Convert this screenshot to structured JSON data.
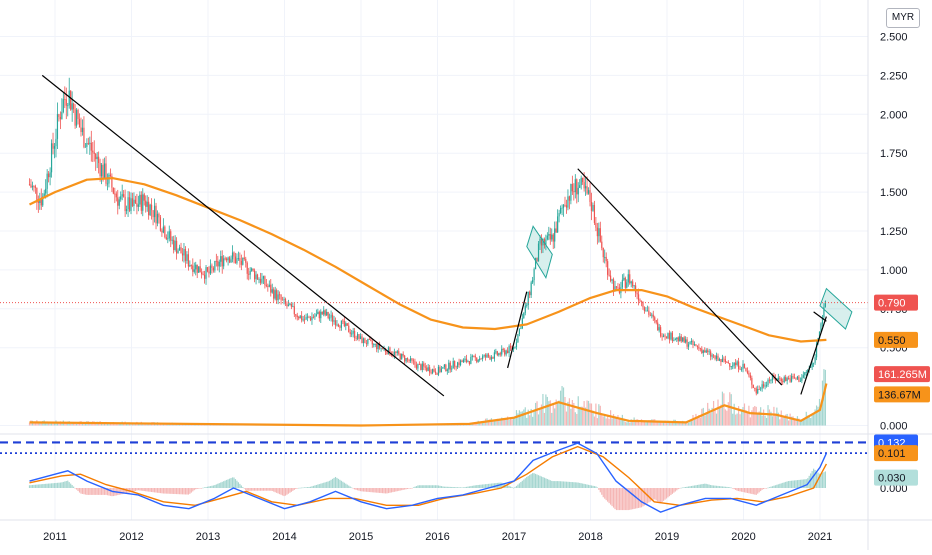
{
  "currency_button": "MYR",
  "colors": {
    "up": "#26a69a",
    "down": "#ef5350",
    "ma": "#f7931a",
    "trendline": "#000000",
    "flag": "#26a69a",
    "macd": "#2962ff",
    "signal": "#f57c00",
    "hline_price": "#ef5350",
    "hline_blue": "#1e3fd6",
    "grid": "#f0f3fa"
  },
  "chart_data": [
    {
      "type": "line",
      "title": "",
      "subtitle": "",
      "xlabel": "",
      "ylabel": "",
      "x_ticks": [
        "2011",
        "2012",
        "2013",
        "2014",
        "2015",
        "2016",
        "2017",
        "2018",
        "2019",
        "2020",
        "2021"
      ],
      "x_range": [
        "2010-09",
        "2021-06"
      ],
      "y_ticks": [
        "2.500",
        "2.250",
        "2.000",
        "1.750",
        "1.500",
        "1.250",
        "1.000",
        "0.750",
        "0.500",
        "0.000"
      ],
      "ylim": [
        -0.05,
        2.6
      ],
      "grid": true,
      "scale": "linear",
      "series": [
        {
          "kind": "price-close",
          "points": [
            [
              "2010-09",
              1.55
            ],
            [
              "2010-11",
              1.45
            ],
            [
              "2011-01",
              1.85
            ],
            [
              "2011-02",
              2.05
            ],
            [
              "2011-03",
              2.15
            ],
            [
              "2011-05",
              1.9
            ],
            [
              "2011-07",
              1.75
            ],
            [
              "2011-09",
              1.6
            ],
            [
              "2011-11",
              1.45
            ],
            [
              "2012-01",
              1.4
            ],
            [
              "2012-03",
              1.45
            ],
            [
              "2012-05",
              1.35
            ],
            [
              "2012-07",
              1.2
            ],
            [
              "2012-10",
              1.05
            ],
            [
              "2013-01",
              0.97
            ],
            [
              "2013-04",
              1.1
            ],
            [
              "2013-06",
              1.05
            ],
            [
              "2013-09",
              0.95
            ],
            [
              "2014-01",
              0.78
            ],
            [
              "2014-04",
              0.68
            ],
            [
              "2014-07",
              0.72
            ],
            [
              "2014-10",
              0.65
            ],
            [
              "2015-01",
              0.55
            ],
            [
              "2015-04",
              0.5
            ],
            [
              "2015-07",
              0.45
            ],
            [
              "2015-10",
              0.38
            ],
            [
              "2016-01",
              0.35
            ],
            [
              "2016-04",
              0.4
            ],
            [
              "2016-07",
              0.43
            ],
            [
              "2016-10",
              0.45
            ],
            [
              "2017-01",
              0.5
            ],
            [
              "2017-03",
              0.78
            ],
            [
              "2017-05",
              1.15
            ],
            [
              "2017-07",
              1.2
            ],
            [
              "2017-09",
              1.45
            ],
            [
              "2017-11",
              1.55
            ],
            [
              "2018-01",
              1.45
            ],
            [
              "2018-03",
              1.1
            ],
            [
              "2018-05",
              0.85
            ],
            [
              "2018-07",
              0.95
            ],
            [
              "2018-09",
              0.8
            ],
            [
              "2018-12",
              0.6
            ],
            [
              "2019-03",
              0.55
            ],
            [
              "2019-06",
              0.5
            ],
            [
              "2019-09",
              0.42
            ],
            [
              "2020-01",
              0.38
            ],
            [
              "2020-03",
              0.22
            ],
            [
              "2020-05",
              0.3
            ],
            [
              "2020-07",
              0.3
            ],
            [
              "2020-10",
              0.3
            ],
            [
              "2020-12",
              0.4
            ],
            [
              "2021-01",
              0.65
            ],
            [
              "2021-02",
              0.79
            ]
          ]
        },
        {
          "kind": "moving-average",
          "points": [
            [
              "2010-09",
              1.42
            ],
            [
              "2011-01",
              1.5
            ],
            [
              "2011-06",
              1.58
            ],
            [
              "2011-10",
              1.59
            ],
            [
              "2012-03",
              1.55
            ],
            [
              "2012-08",
              1.48
            ],
            [
              "2013-01",
              1.4
            ],
            [
              "2013-06",
              1.32
            ],
            [
              "2013-11",
              1.23
            ],
            [
              "2014-04",
              1.13
            ],
            [
              "2014-09",
              1.02
            ],
            [
              "2015-02",
              0.9
            ],
            [
              "2015-07",
              0.78
            ],
            [
              "2015-12",
              0.68
            ],
            [
              "2016-05",
              0.63
            ],
            [
              "2016-10",
              0.62
            ],
            [
              "2017-03",
              0.65
            ],
            [
              "2017-08",
              0.73
            ],
            [
              "2018-01",
              0.82
            ],
            [
              "2018-05",
              0.87
            ],
            [
              "2018-09",
              0.87
            ],
            [
              "2019-01",
              0.83
            ],
            [
              "2019-05",
              0.76
            ],
            [
              "2019-09",
              0.7
            ],
            [
              "2020-01",
              0.64
            ],
            [
              "2020-05",
              0.58
            ],
            [
              "2020-10",
              0.54
            ],
            [
              "2021-02",
              0.55
            ]
          ]
        },
        {
          "kind": "volume-moving-average",
          "points": [
            [
              "2010-09",
              0.02
            ],
            [
              "2015-01",
              0.0
            ],
            [
              "2016-06",
              0.01
            ],
            [
              "2017-01",
              0.05
            ],
            [
              "2017-08",
              0.15
            ],
            [
              "2018-02",
              0.08
            ],
            [
              "2018-07",
              0.03
            ],
            [
              "2019-04",
              0.02
            ],
            [
              "2019-10",
              0.13
            ],
            [
              "2020-02",
              0.08
            ],
            [
              "2020-06",
              0.07
            ],
            [
              "2020-10",
              0.03
            ],
            [
              "2021-01",
              0.1
            ],
            [
              "2021-02",
              0.27
            ]
          ]
        }
      ],
      "trendlines": [
        {
          "from": [
            "2010-11",
            2.25
          ],
          "to": [
            "2016-02",
            0.19
          ]
        },
        {
          "from": [
            "2017-11",
            1.65
          ],
          "to": [
            "2020-07",
            0.26
          ]
        },
        {
          "from": [
            "2016-12",
            0.37
          ],
          "to": [
            "2017-03",
            0.86
          ]
        },
        {
          "from": [
            "2020-10",
            0.2
          ],
          "to": [
            "2021-02",
            0.7
          ]
        },
        {
          "from": [
            "2020-12",
            0.73
          ],
          "to": [
            "2021-02",
            0.67
          ]
        }
      ],
      "flags": [
        {
          "corners": [
            [
              "2017-04",
              1.28
            ],
            [
              "2017-07",
              1.1
            ],
            [
              "2017-06",
              0.95
            ],
            [
              "2017-03",
              1.15
            ]
          ]
        },
        {
          "corners": [
            [
              "2021-02",
              0.88
            ],
            [
              "2021-06",
              0.73
            ],
            [
              "2021-05",
              0.62
            ],
            [
              "2021-01",
              0.77
            ]
          ]
        }
      ],
      "horizontal_levels": [
        {
          "value": 0.79
        }
      ],
      "price_labels": [
        {
          "text": "0.790",
          "style": "red"
        },
        {
          "text": "0.550",
          "style": "orange"
        },
        {
          "text": "161.265M",
          "style": "red"
        },
        {
          "text": "136.67M",
          "style": "orange"
        }
      ]
    },
    {
      "type": "line",
      "title": "",
      "series": [
        {
          "kind": "macd",
          "points": [
            [
              "2010-09",
              0.02
            ],
            [
              "2011-01",
              0.04
            ],
            [
              "2011-03",
              0.05
            ],
            [
              "2011-06",
              0.02
            ],
            [
              "2011-10",
              -0.01
            ],
            [
              "2012-02",
              -0.02
            ],
            [
              "2012-06",
              -0.05
            ],
            [
              "2012-10",
              -0.06
            ],
            [
              "2013-02",
              -0.03
            ],
            [
              "2013-05",
              0.0
            ],
            [
              "2013-09",
              -0.03
            ],
            [
              "2014-01",
              -0.06
            ],
            [
              "2014-05",
              -0.04
            ],
            [
              "2014-09",
              -0.01
            ],
            [
              "2015-01",
              -0.04
            ],
            [
              "2015-05",
              -0.06
            ],
            [
              "2015-09",
              -0.05
            ],
            [
              "2016-01",
              -0.03
            ],
            [
              "2016-05",
              -0.02
            ],
            [
              "2016-09",
              0.0
            ],
            [
              "2017-01",
              0.02
            ],
            [
              "2017-04",
              0.08
            ],
            [
              "2017-08",
              0.11
            ],
            [
              "2017-11",
              0.13
            ],
            [
              "2018-02",
              0.1
            ],
            [
              "2018-05",
              0.02
            ],
            [
              "2018-09",
              -0.04
            ],
            [
              "2018-12",
              -0.07
            ],
            [
              "2019-03",
              -0.05
            ],
            [
              "2019-07",
              -0.03
            ],
            [
              "2019-11",
              -0.03
            ],
            [
              "2020-03",
              -0.05
            ],
            [
              "2020-07",
              -0.02
            ],
            [
              "2020-11",
              0.01
            ],
            [
              "2021-01",
              0.06
            ],
            [
              "2021-02",
              0.101
            ]
          ]
        },
        {
          "kind": "signal",
          "points": [
            [
              "2010-09",
              0.015
            ],
            [
              "2011-02",
              0.035
            ],
            [
              "2011-05",
              0.04
            ],
            [
              "2011-09",
              0.01
            ],
            [
              "2012-01",
              -0.01
            ],
            [
              "2012-06",
              -0.04
            ],
            [
              "2012-11",
              -0.05
            ],
            [
              "2013-03",
              -0.03
            ],
            [
              "2013-07",
              -0.01
            ],
            [
              "2013-11",
              -0.04
            ],
            [
              "2014-03",
              -0.05
            ],
            [
              "2014-08",
              -0.03
            ],
            [
              "2014-12",
              -0.03
            ],
            [
              "2015-05",
              -0.05
            ],
            [
              "2015-10",
              -0.05
            ],
            [
              "2016-02",
              -0.03
            ],
            [
              "2016-07",
              -0.015
            ],
            [
              "2016-11",
              0.0
            ],
            [
              "2017-03",
              0.04
            ],
            [
              "2017-07",
              0.09
            ],
            [
              "2017-11",
              0.12
            ],
            [
              "2018-03",
              0.09
            ],
            [
              "2018-07",
              0.03
            ],
            [
              "2018-11",
              -0.04
            ],
            [
              "2019-03",
              -0.05
            ],
            [
              "2019-08",
              -0.035
            ],
            [
              "2019-12",
              -0.03
            ],
            [
              "2020-04",
              -0.04
            ],
            [
              "2020-08",
              -0.025
            ],
            [
              "2020-12",
              0.0
            ],
            [
              "2021-02",
              0.07
            ]
          ]
        }
      ],
      "horizontal_levels": [
        {
          "value": 0.132
        },
        {
          "value": 0.101
        }
      ],
      "price_labels": [
        {
          "text": "0.132",
          "style": "blue"
        },
        {
          "text": "0.101",
          "style": "orange"
        },
        {
          "text": "0.030",
          "style": "teal"
        }
      ],
      "y_ticks": [
        "0.000"
      ]
    }
  ]
}
